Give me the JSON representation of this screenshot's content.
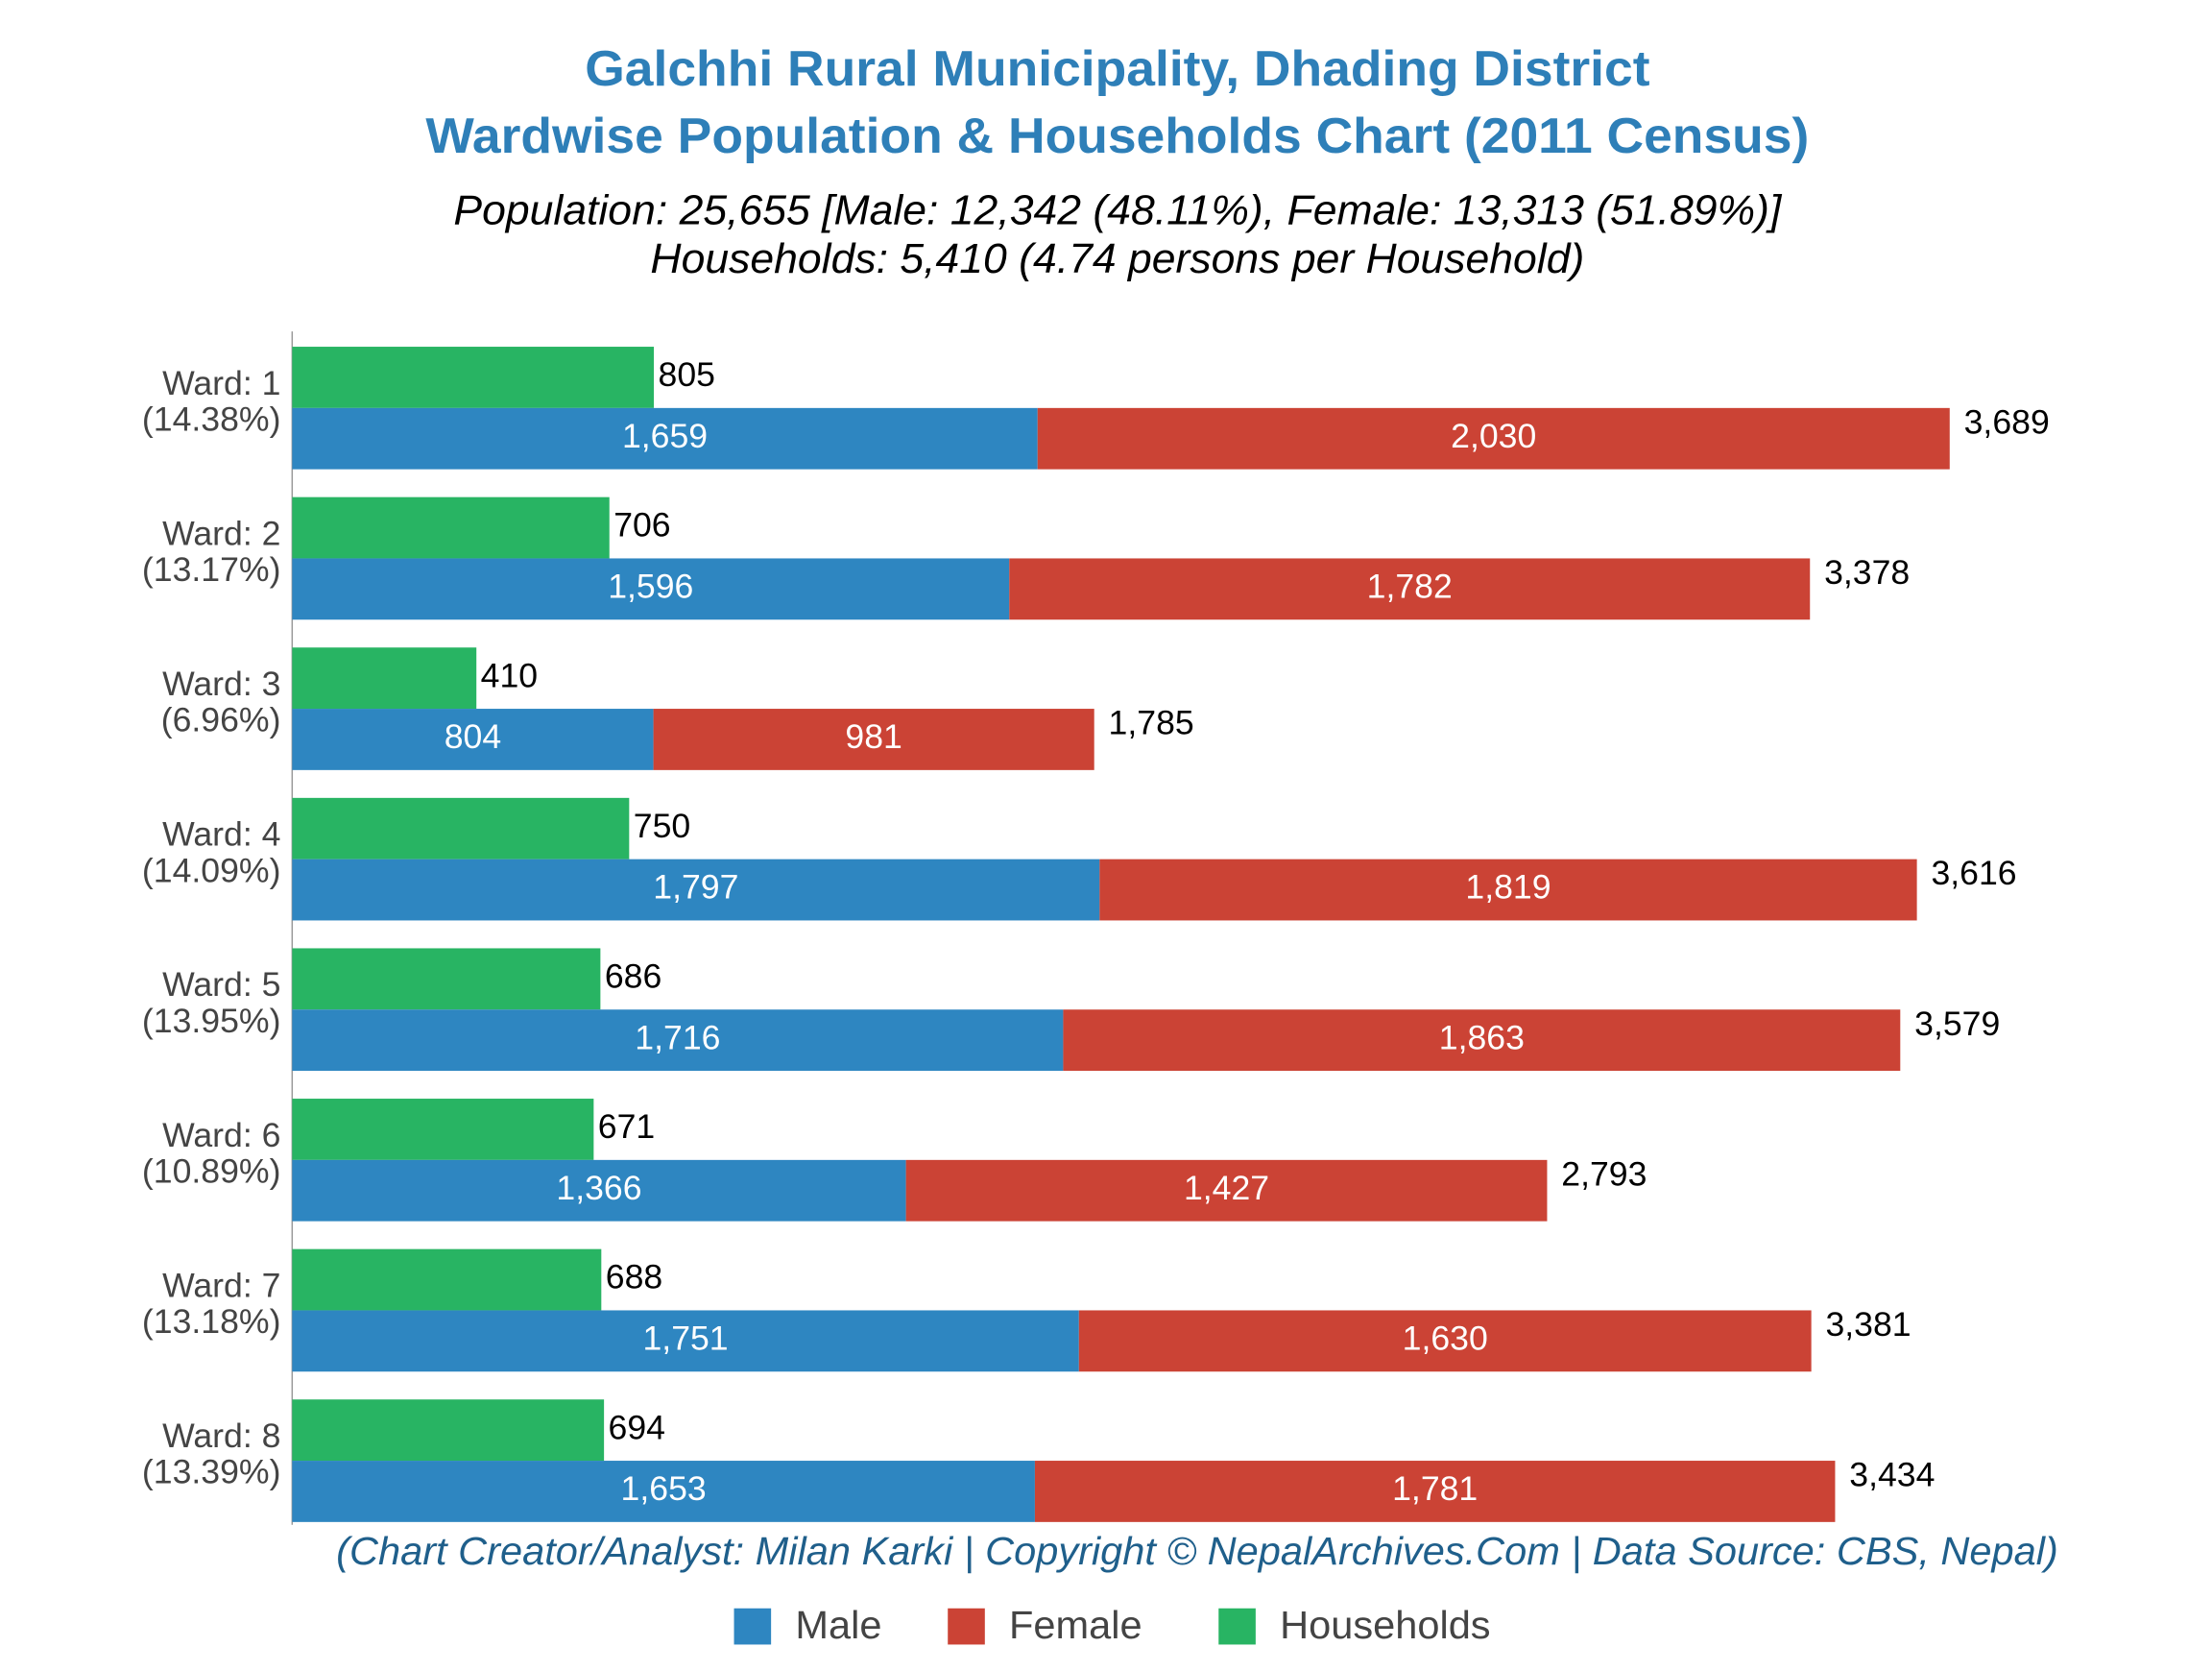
{
  "chart_data": {
    "type": "bar",
    "title": [
      "Galchhi Rural Municipality, Dhading District",
      "Wardwise Population & Households Chart (2011 Census)"
    ],
    "subtitle": [
      "Population: 25,655 [Male: 12,342 (48.11%), Female: 13,313 (51.89%)]",
      "Households: 5,410 (4.74 persons per Household)"
    ],
    "footer": "(Chart Creator/Analyst: Milan Karki | Copyright © NepalArchives.Com | Data Source: CBS, Nepal)",
    "categories": [
      "Ward: 1",
      "Ward: 2",
      "Ward: 3",
      "Ward: 4",
      "Ward: 5",
      "Ward: 6",
      "Ward: 7",
      "Ward: 8"
    ],
    "shares": [
      "(14.38%)",
      "(13.17%)",
      "(6.96%)",
      "(14.09%)",
      "(13.95%)",
      "(10.89%)",
      "(13.18%)",
      "(13.39%)"
    ],
    "series": [
      {
        "name": "Male",
        "color": "#2e86c1",
        "values": [
          1659,
          1596,
          804,
          1797,
          1716,
          1366,
          1751,
          1653
        ],
        "value_labels": [
          "1,659",
          "1,596",
          "804",
          "1,797",
          "1,716",
          "1,366",
          "1,751",
          "1,653"
        ]
      },
      {
        "name": "Female",
        "color": "#cb4335",
        "values": [
          2030,
          1782,
          981,
          1819,
          1863,
          1427,
          1630,
          1781
        ],
        "value_labels": [
          "2,030",
          "1,782",
          "981",
          "1,819",
          "1,863",
          "1,427",
          "1,630",
          "1,781"
        ]
      },
      {
        "name": "Households",
        "color": "#28b463",
        "values": [
          805,
          706,
          410,
          750,
          686,
          671,
          688,
          694
        ]
      }
    ],
    "totals": [
      3689,
      3378,
      1785,
      3616,
      3579,
      2793,
      3381,
      3434
    ],
    "total_labels": [
      "3,689",
      "3,378",
      "1,785",
      "3,616",
      "3,579",
      "2,793",
      "3,381",
      "3,434"
    ],
    "xlim": [
      0,
      4000
    ],
    "legend": "bottom"
  }
}
